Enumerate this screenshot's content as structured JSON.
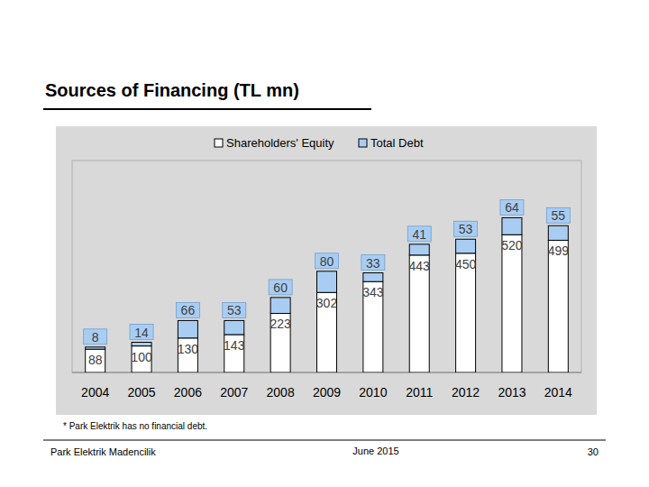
{
  "chart_data": {
    "type": "bar",
    "stacked": true,
    "title": "Sources of Financing (TL mn)",
    "categories": [
      "2004",
      "2005",
      "2006",
      "2007",
      "2008",
      "2009",
      "2010",
      "2011",
      "2012",
      "2013",
      "2014"
    ],
    "series": [
      {
        "name": "Shareholders' Equity",
        "color": "#ffffff",
        "values": [
          88,
          100,
          130,
          143,
          223,
          302,
          343,
          443,
          450,
          520,
          499
        ]
      },
      {
        "name": "Total Debt",
        "color": "#a9cdf2",
        "values": [
          8,
          14,
          66,
          53,
          60,
          80,
          33,
          41,
          53,
          64,
          55
        ]
      }
    ],
    "ylim": [
      0,
      800
    ],
    "tick_labels": "x",
    "data_labels": true,
    "legend": "top",
    "grid": false,
    "annotations": [
      "* Park Elektrik has no financial debt."
    ]
  },
  "footer": {
    "left": "Park Elektrik Madencilik",
    "center": "June 2015",
    "page": "30"
  }
}
